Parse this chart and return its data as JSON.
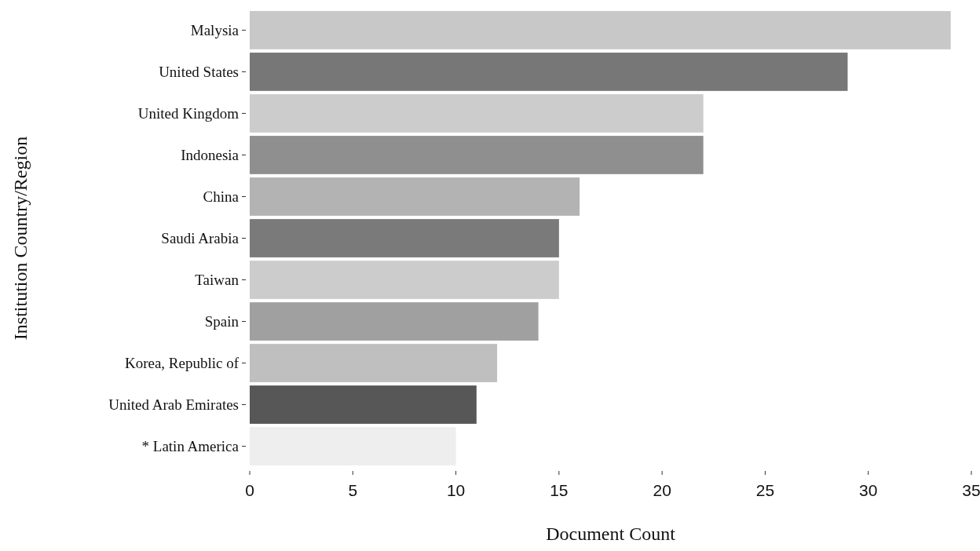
{
  "chart_data": {
    "type": "bar",
    "orientation": "horizontal",
    "xlabel": "Document Count",
    "ylabel": "Institution Country/Region",
    "categories": [
      "Malysia",
      "United States",
      "United Kingdom",
      "Indonesia",
      "China",
      "Saudi Arabia",
      "Taiwan",
      "Spain",
      "Korea, Republic of",
      "United Arab Emirates",
      "* Latin America"
    ],
    "values": [
      34,
      29,
      22,
      22,
      16,
      15,
      15,
      14,
      12,
      11,
      10
    ],
    "colors": [
      "#c8c8c8",
      "#777777",
      "#cccccc",
      "#8f8f8f",
      "#b3b3b3",
      "#7a7a7a",
      "#cccccc",
      "#a0a0a0",
      "#bfbfbf",
      "#575757",
      "#eeeeee"
    ],
    "xlim": [
      0,
      35
    ],
    "xticks": [
      0,
      5,
      10,
      15,
      20,
      25,
      30,
      35
    ],
    "grid": false
  }
}
